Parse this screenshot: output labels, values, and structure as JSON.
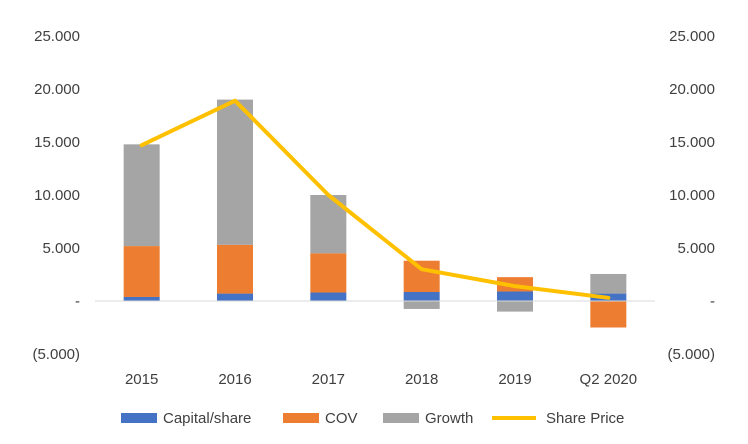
{
  "chart_data": {
    "type": "bar",
    "stacked": true,
    "categories": [
      "2015",
      "2016",
      "2017",
      "2018",
      "2019",
      "Q2 2020"
    ],
    "series": [
      {
        "name": "Capital/share",
        "kind": "bar",
        "color": "#4472C4",
        "values": [
          380,
          700,
          800,
          850,
          900,
          700
        ]
      },
      {
        "name": "COV",
        "kind": "bar",
        "color": "#ED7D31",
        "values": [
          4800,
          4600,
          3700,
          2950,
          1350,
          -2500
        ]
      },
      {
        "name": "Growth",
        "kind": "bar",
        "color": "#A5A5A5",
        "values": [
          9600,
          13700,
          5500,
          -750,
          -1000,
          1850
        ]
      },
      {
        "name": "Share Price",
        "kind": "line",
        "color": "#FFC000",
        "values": [
          14700,
          18900,
          10000,
          3000,
          1400,
          300
        ]
      }
    ],
    "y_left": {
      "min": -5000,
      "max": 25000,
      "step": 5000,
      "tick_labels": [
        "(5.000)",
        "-",
        "5.000",
        "10.000",
        "15.000",
        "20.000",
        "25.000"
      ]
    },
    "y_right": {
      "min": -5000,
      "max": 25000,
      "step": 5000,
      "tick_labels": [
        "(5.000)",
        "-",
        "5.000",
        "10.000",
        "15.000",
        "20.000",
        "25.000"
      ]
    },
    "zero_line_color": "#D9D9D9",
    "grid": false,
    "legend_position": "bottom"
  }
}
